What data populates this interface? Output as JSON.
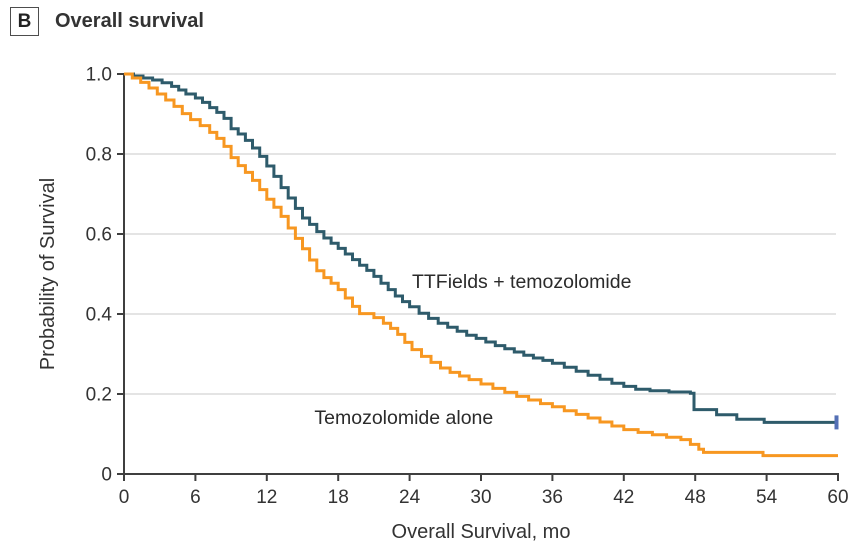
{
  "panel": {
    "letter": "B",
    "title": "Overall survival"
  },
  "colors": {
    "ttfields_curve": "#2e5b6b",
    "temozolomide_curve": "#f79721",
    "censor_tick": "#5470b5",
    "axis": "#3f3f3f",
    "gridline": "#e4e4e4",
    "text": "#333333"
  },
  "chart_data": {
    "type": "line",
    "subtype": "kaplan-meier-step",
    "title": "Overall survival",
    "xlabel": "Overall Survival, mo",
    "ylabel": "Probability of Survival",
    "xlim": [
      0,
      60
    ],
    "ylim": [
      0,
      1.0
    ],
    "xticks": [
      0,
      6,
      12,
      18,
      24,
      30,
      36,
      42,
      48,
      54,
      60
    ],
    "ytick_labels": [
      "1.0",
      "0.8",
      "0.6",
      "0.4",
      "0.2",
      "0"
    ],
    "ytick_values": [
      1.0,
      0.8,
      0.6,
      0.4,
      0.2,
      0
    ],
    "grid": "horizontal",
    "legend_position": "inline-annotations",
    "series": [
      {
        "name": "TTFields + temozolomide",
        "color": "#2e5b6b",
        "end_censor_tick": true,
        "censor_color": "#5470b5",
        "points": [
          [
            0,
            1.0
          ],
          [
            0.8,
            0.995
          ],
          [
            1.6,
            0.99
          ],
          [
            2.4,
            0.985
          ],
          [
            3.2,
            0.978
          ],
          [
            4.0,
            0.969
          ],
          [
            4.6,
            0.96
          ],
          [
            5.2,
            0.95
          ],
          [
            6.0,
            0.94
          ],
          [
            6.6,
            0.929
          ],
          [
            7.2,
            0.916
          ],
          [
            7.8,
            0.904
          ],
          [
            8.4,
            0.889
          ],
          [
            9.0,
            0.863
          ],
          [
            9.6,
            0.85
          ],
          [
            10.2,
            0.834
          ],
          [
            10.8,
            0.815
          ],
          [
            11.4,
            0.794
          ],
          [
            12.0,
            0.77
          ],
          [
            12.6,
            0.744
          ],
          [
            13.2,
            0.716
          ],
          [
            13.8,
            0.69
          ],
          [
            14.4,
            0.664
          ],
          [
            15.0,
            0.64
          ],
          [
            15.6,
            0.624
          ],
          [
            16.2,
            0.606
          ],
          [
            16.8,
            0.59
          ],
          [
            17.4,
            0.577
          ],
          [
            18.0,
            0.564
          ],
          [
            18.6,
            0.55
          ],
          [
            19.2,
            0.536
          ],
          [
            19.8,
            0.522
          ],
          [
            20.4,
            0.509
          ],
          [
            21.0,
            0.494
          ],
          [
            21.6,
            0.477
          ],
          [
            22.2,
            0.461
          ],
          [
            22.8,
            0.445
          ],
          [
            23.4,
            0.431
          ],
          [
            24.0,
            0.418
          ],
          [
            24.8,
            0.402
          ],
          [
            25.6,
            0.389
          ],
          [
            26.4,
            0.377
          ],
          [
            27.2,
            0.367
          ],
          [
            28.0,
            0.357
          ],
          [
            28.8,
            0.347
          ],
          [
            29.6,
            0.339
          ],
          [
            30.4,
            0.33
          ],
          [
            31.2,
            0.321
          ],
          [
            32.0,
            0.313
          ],
          [
            32.8,
            0.305
          ],
          [
            33.6,
            0.297
          ],
          [
            34.4,
            0.29
          ],
          [
            35.2,
            0.284
          ],
          [
            36.0,
            0.277
          ],
          [
            37.0,
            0.267
          ],
          [
            38.0,
            0.257
          ],
          [
            39.0,
            0.247
          ],
          [
            40.0,
            0.237
          ],
          [
            41.0,
            0.227
          ],
          [
            42.0,
            0.219
          ],
          [
            43.0,
            0.212
          ],
          [
            44.2,
            0.208
          ],
          [
            45.8,
            0.205
          ],
          [
            47.6,
            0.202
          ],
          [
            47.9,
            0.161
          ],
          [
            49.8,
            0.148
          ],
          [
            51.5,
            0.137
          ],
          [
            53.8,
            0.129
          ],
          [
            60,
            0.129
          ]
        ]
      },
      {
        "name": "Temozolomide alone",
        "color": "#f79721",
        "end_censor_tick": false,
        "points": [
          [
            0,
            1.0
          ],
          [
            0.7,
            0.99
          ],
          [
            1.4,
            0.979
          ],
          [
            2.1,
            0.965
          ],
          [
            2.8,
            0.95
          ],
          [
            3.5,
            0.935
          ],
          [
            4.2,
            0.919
          ],
          [
            4.9,
            0.901
          ],
          [
            5.6,
            0.886
          ],
          [
            6.4,
            0.871
          ],
          [
            7.2,
            0.854
          ],
          [
            7.8,
            0.839
          ],
          [
            8.4,
            0.819
          ],
          [
            9.0,
            0.791
          ],
          [
            9.6,
            0.771
          ],
          [
            10.2,
            0.754
          ],
          [
            10.8,
            0.734
          ],
          [
            11.4,
            0.711
          ],
          [
            12.0,
            0.687
          ],
          [
            12.6,
            0.667
          ],
          [
            13.2,
            0.644
          ],
          [
            13.8,
            0.615
          ],
          [
            14.4,
            0.589
          ],
          [
            15.0,
            0.563
          ],
          [
            15.6,
            0.535
          ],
          [
            16.2,
            0.508
          ],
          [
            16.8,
            0.491
          ],
          [
            17.4,
            0.477
          ],
          [
            18.0,
            0.461
          ],
          [
            18.6,
            0.44
          ],
          [
            19.2,
            0.419
          ],
          [
            19.8,
            0.401
          ],
          [
            21.0,
            0.391
          ],
          [
            21.8,
            0.377
          ],
          [
            22.4,
            0.364
          ],
          [
            23.0,
            0.349
          ],
          [
            23.6,
            0.329
          ],
          [
            24.2,
            0.311
          ],
          [
            25.0,
            0.294
          ],
          [
            25.8,
            0.279
          ],
          [
            26.6,
            0.265
          ],
          [
            27.4,
            0.254
          ],
          [
            28.2,
            0.245
          ],
          [
            29.0,
            0.236
          ],
          [
            30.0,
            0.225
          ],
          [
            31.0,
            0.214
          ],
          [
            32.0,
            0.204
          ],
          [
            33.0,
            0.194
          ],
          [
            34.0,
            0.185
          ],
          [
            35.0,
            0.176
          ],
          [
            36.0,
            0.168
          ],
          [
            37.0,
            0.158
          ],
          [
            38.0,
            0.149
          ],
          [
            39.0,
            0.14
          ],
          [
            40.0,
            0.13
          ],
          [
            41.0,
            0.12
          ],
          [
            42.0,
            0.111
          ],
          [
            43.2,
            0.104
          ],
          [
            44.4,
            0.098
          ],
          [
            45.6,
            0.092
          ],
          [
            46.8,
            0.086
          ],
          [
            47.6,
            0.074
          ],
          [
            48.3,
            0.062
          ],
          [
            48.7,
            0.054
          ],
          [
            53.7,
            0.046
          ],
          [
            60,
            0.046
          ]
        ]
      }
    ],
    "annotations": [
      {
        "text": "TTFields + temozolomide",
        "t": 24.2,
        "p": 0.4825
      },
      {
        "text": "Temozolomide alone",
        "t": 16.0,
        "p": 0.1425
      }
    ]
  }
}
